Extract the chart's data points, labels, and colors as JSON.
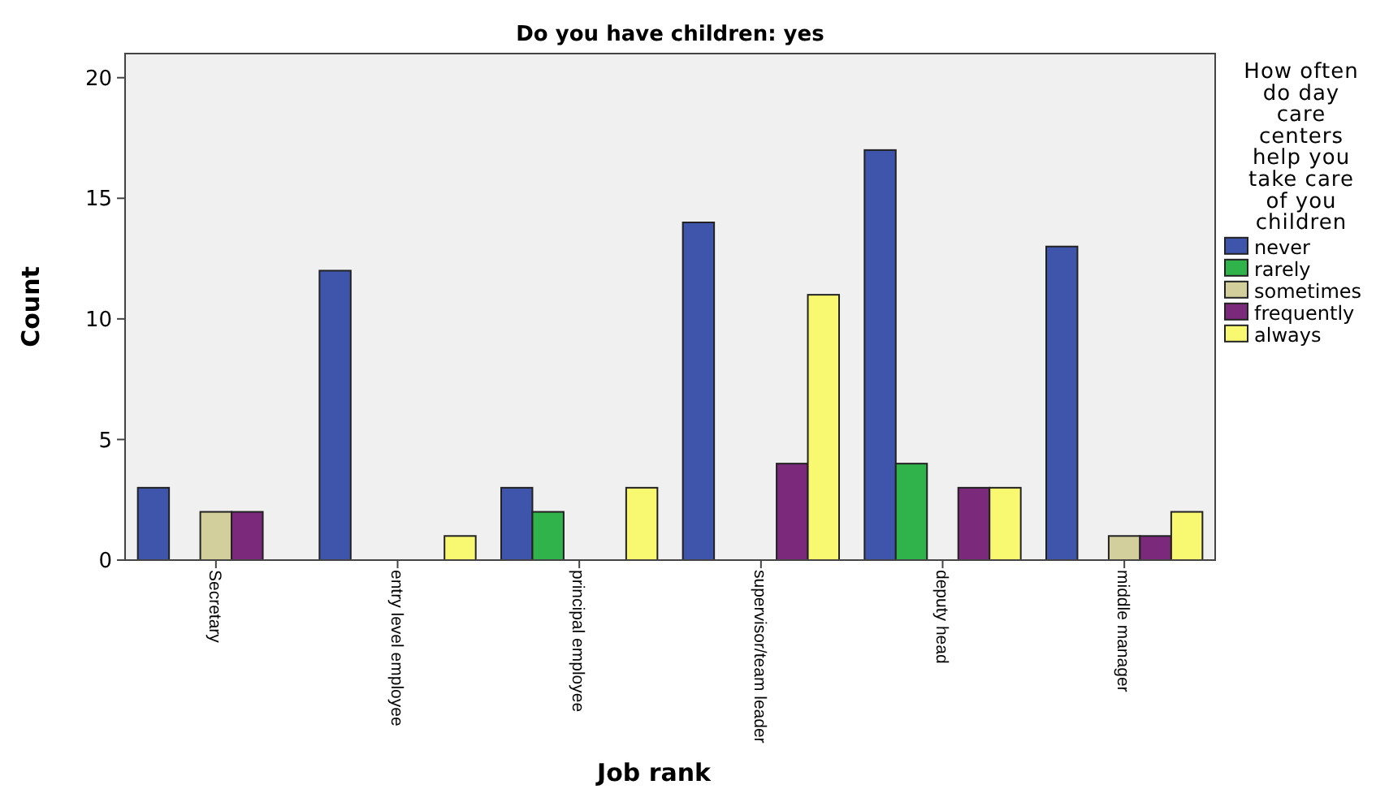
{
  "chart_data": {
    "type": "bar",
    "title": "Do you have children: yes",
    "xlabel": "Job rank",
    "ylabel": "Count",
    "legend_title": "How often do day care centers help you take care of you children",
    "categories": [
      "Secretary",
      "entry level employee",
      "principal employee",
      "supervisor/team leader",
      "deputy head",
      "middle manager"
    ],
    "series": [
      {
        "name": "never",
        "color": "#3e55ab",
        "values": [
          3,
          12,
          3,
          14,
          17,
          13
        ]
      },
      {
        "name": "rarely",
        "color": "#2fb34a",
        "values": [
          null,
          null,
          2,
          null,
          4,
          null
        ]
      },
      {
        "name": "sometimes",
        "color": "#d3cf9d",
        "values": [
          2,
          null,
          null,
          null,
          null,
          1
        ]
      },
      {
        "name": "frequently",
        "color": "#7b2a7b",
        "values": [
          2,
          null,
          null,
          4,
          3,
          1
        ]
      },
      {
        "name": "always",
        "color": "#f9f871",
        "values": [
          null,
          1,
          3,
          11,
          3,
          2
        ]
      }
    ],
    "ylim": [
      0,
      21
    ],
    "yticks": [
      0,
      5,
      10,
      15,
      20
    ],
    "grid": false,
    "legend": "right"
  }
}
